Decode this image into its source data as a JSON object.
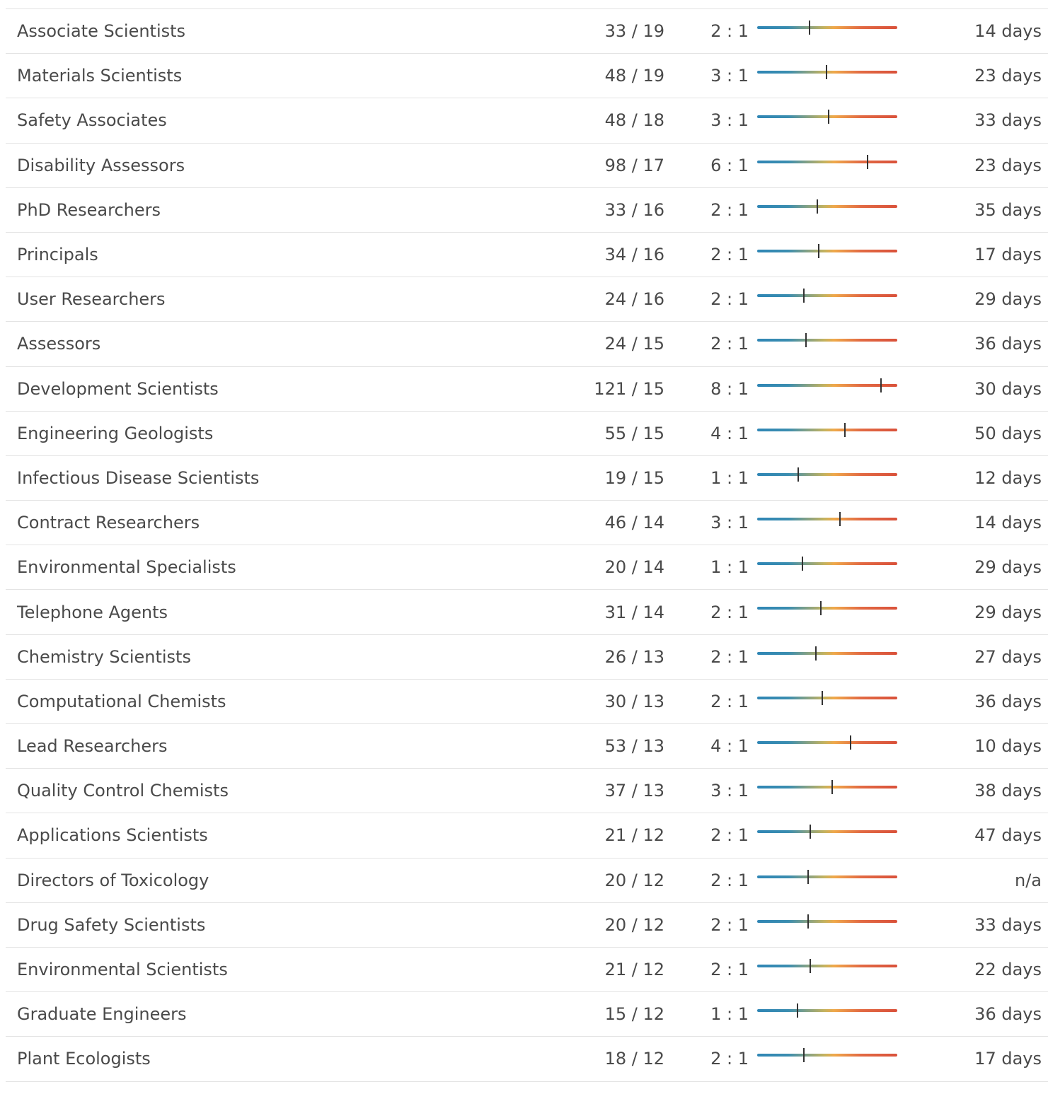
{
  "colors": {
    "bar_start": "#2f86b5",
    "bar_mid": "#efa84a",
    "bar_end": "#d9513a",
    "tick": "#333333",
    "divider": "#e3e3e3",
    "text": "#4a4a4a"
  },
  "rows": [
    {
      "title": "Associate Scientists",
      "counts": "33 / 19",
      "ratio": "2 : 1",
      "level": 0.374,
      "days": "14 days"
    },
    {
      "title": "Materials Scientists",
      "counts": "48 / 19",
      "ratio": "3 : 1",
      "level": 0.495,
      "days": "23 days"
    },
    {
      "title": "Safety Associates",
      "counts": "48 / 18",
      "ratio": "3 : 1",
      "level": 0.51,
      "days": "33 days"
    },
    {
      "title": "Disability Assessors",
      "counts": "98 / 17",
      "ratio": "6 : 1",
      "level": 0.788,
      "days": "23 days"
    },
    {
      "title": "PhD Researchers",
      "counts": "33 / 16",
      "ratio": "2 : 1",
      "level": 0.429,
      "days": "35 days"
    },
    {
      "title": "Principals",
      "counts": "34 / 16",
      "ratio": "2 : 1",
      "level": 0.439,
      "days": "17 days"
    },
    {
      "title": "User Researchers",
      "counts": "24 / 16",
      "ratio": "2 : 1",
      "level": 0.333,
      "days": "29 days"
    },
    {
      "title": "Assessors",
      "counts": "24 / 15",
      "ratio": "2 : 1",
      "level": 0.348,
      "days": "36 days"
    },
    {
      "title": "Development Scientists",
      "counts": "121 / 15",
      "ratio": "8 : 1",
      "level": 0.884,
      "days": "30 days"
    },
    {
      "title": "Engineering Geologists",
      "counts": "55 / 15",
      "ratio": "4 : 1",
      "level": 0.626,
      "days": "50 days"
    },
    {
      "title": "Infectious Disease Scientists",
      "counts": "19 / 15",
      "ratio": "1 : 1",
      "level": 0.293,
      "days": "12 days"
    },
    {
      "title": "Contract Researchers",
      "counts": "46 / 14",
      "ratio": "3 : 1",
      "level": 0.591,
      "days": "14 days"
    },
    {
      "title": "Environmental Specialists",
      "counts": "20 / 14",
      "ratio": "1 : 1",
      "level": 0.323,
      "days": "29 days"
    },
    {
      "title": "Telephone Agents",
      "counts": "31 / 14",
      "ratio": "2 : 1",
      "level": 0.455,
      "days": "29 days"
    },
    {
      "title": "Chemistry Scientists",
      "counts": "26 / 13",
      "ratio": "2 : 1",
      "level": 0.419,
      "days": "27 days"
    },
    {
      "title": "Computational Chemists",
      "counts": "30 / 13",
      "ratio": "2 : 1",
      "level": 0.465,
      "days": "36 days"
    },
    {
      "title": "Lead Researchers",
      "counts": "53 / 13",
      "ratio": "4 : 1",
      "level": 0.667,
      "days": "10 days"
    },
    {
      "title": "Quality Control Chemists",
      "counts": "37 / 13",
      "ratio": "3 : 1",
      "level": 0.535,
      "days": "38 days"
    },
    {
      "title": "Applications Scientists",
      "counts": "21 / 12",
      "ratio": "2 : 1",
      "level": 0.379,
      "days": "47 days"
    },
    {
      "title": "Directors of Toxicology",
      "counts": "20 / 12",
      "ratio": "2 : 1",
      "level": 0.364,
      "days": "n/a"
    },
    {
      "title": "Drug Safety Scientists",
      "counts": "20 / 12",
      "ratio": "2 : 1",
      "level": 0.364,
      "days": "33 days"
    },
    {
      "title": "Environmental Scientists",
      "counts": "21 / 12",
      "ratio": "2 : 1",
      "level": 0.379,
      "days": "22 days"
    },
    {
      "title": "Graduate Engineers",
      "counts": "15 / 12",
      "ratio": "1 : 1",
      "level": 0.288,
      "days": "36 days"
    },
    {
      "title": "Plant Ecologists",
      "counts": "18 / 12",
      "ratio": "2 : 1",
      "level": 0.333,
      "days": "17 days"
    }
  ]
}
